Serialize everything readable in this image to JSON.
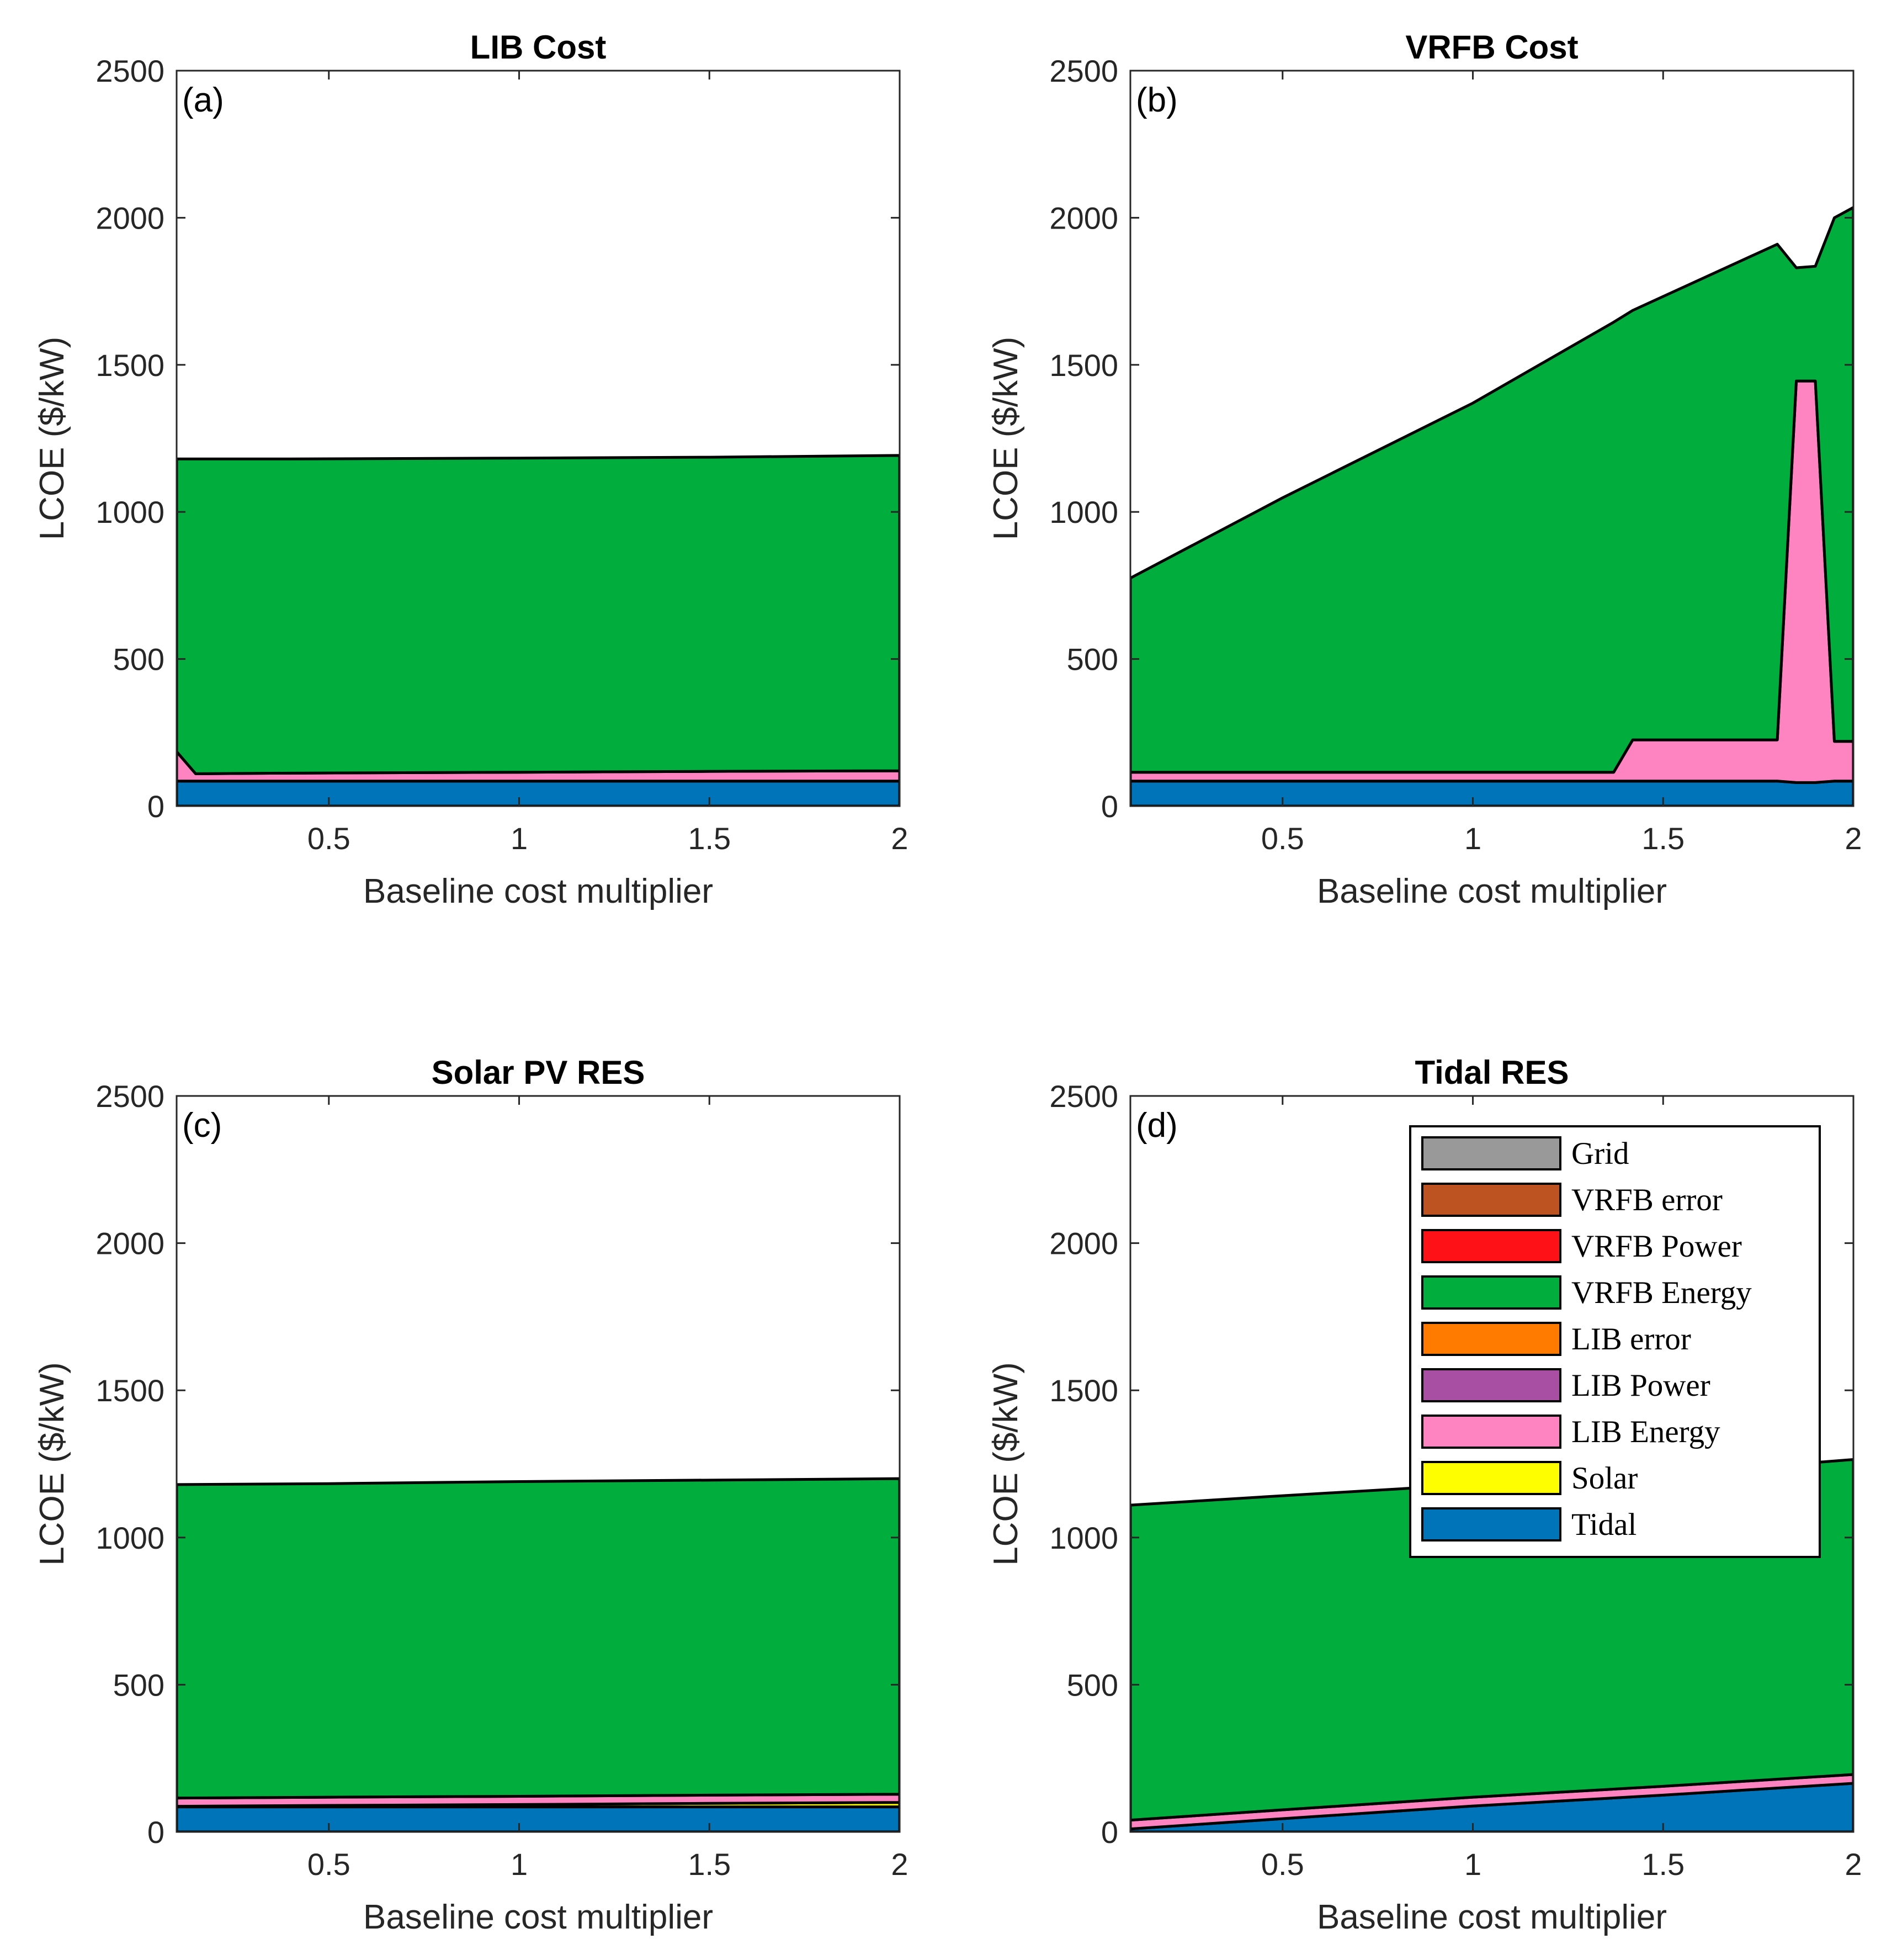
{
  "chart_data": [
    {
      "type": "area",
      "panel": "(a)",
      "title": "LIB Cost",
      "xlabel": "Baseline cost multiplier",
      "ylabel": "LCOE ($/kW)",
      "xlim": [
        0.1,
        2
      ],
      "ylim": [
        0,
        2500
      ],
      "xticks": [
        0.5,
        1,
        1.5,
        2
      ],
      "yticks": [
        0,
        500,
        1000,
        1500,
        2000,
        2500
      ],
      "x": [
        0.1,
        0.15,
        0.4,
        1.0,
        1.5,
        2.0
      ],
      "series": [
        {
          "name": "Tidal",
          "values": [
            85,
            85,
            85,
            85,
            85,
            85
          ]
        },
        {
          "name": "Solar",
          "values": [
            0,
            0,
            0,
            0,
            0,
            0
          ]
        },
        {
          "name": "LIB Energy",
          "values": [
            100,
            25,
            27,
            30,
            33,
            35
          ]
        },
        {
          "name": "LIB Power",
          "values": [
            0,
            0,
            0,
            0,
            0,
            0
          ]
        },
        {
          "name": "LIB error",
          "values": [
            0,
            0,
            0,
            0,
            0,
            0
          ]
        },
        {
          "name": "VRFB Energy",
          "values": [
            995,
            1070,
            1068,
            1068,
            1068,
            1072
          ]
        },
        {
          "name": "VRFB Power",
          "values": [
            0,
            0,
            0,
            0,
            0,
            0
          ]
        },
        {
          "name": "VRFB error",
          "values": [
            0,
            0,
            0,
            0,
            0,
            0
          ]
        },
        {
          "name": "Grid",
          "values": [
            0,
            0,
            0,
            0,
            0,
            0
          ]
        }
      ]
    },
    {
      "type": "area",
      "panel": "(b)",
      "title": "VRFB Cost",
      "xlabel": "Baseline cost multiplier",
      "ylabel": "LCOE ($/kW)",
      "xlim": [
        0.1,
        2
      ],
      "ylim": [
        0,
        2500
      ],
      "xticks": [
        0.5,
        1,
        1.5,
        2
      ],
      "yticks": [
        0,
        500,
        1000,
        1500,
        2000,
        2500
      ],
      "x": [
        0.1,
        0.5,
        1.0,
        1.37,
        1.42,
        1.8,
        1.85,
        1.9,
        1.95,
        2.0
      ],
      "series": [
        {
          "name": "Tidal",
          "values": [
            85,
            85,
            85,
            85,
            85,
            85,
            80,
            80,
            85,
            85
          ]
        },
        {
          "name": "Solar",
          "values": [
            0,
            0,
            0,
            0,
            0,
            0,
            0,
            0,
            0,
            0
          ]
        },
        {
          "name": "LIB Energy",
          "values": [
            30,
            30,
            30,
            30,
            140,
            140,
            1365,
            1365,
            135,
            135
          ]
        },
        {
          "name": "LIB Power",
          "values": [
            0,
            0,
            0,
            0,
            0,
            0,
            0,
            0,
            0,
            0
          ]
        },
        {
          "name": "LIB error",
          "values": [
            0,
            0,
            0,
            0,
            0,
            0,
            0,
            0,
            0,
            0
          ]
        },
        {
          "name": "VRFB Energy",
          "values": [
            660,
            933,
            1255,
            1530,
            1460,
            1685,
            385,
            390,
            1780,
            1815
          ]
        },
        {
          "name": "VRFB Power",
          "values": [
            0,
            0,
            0,
            0,
            0,
            0,
            0,
            0,
            0,
            0
          ]
        },
        {
          "name": "VRFB error",
          "values": [
            0,
            0,
            0,
            0,
            0,
            0,
            0,
            0,
            0,
            0
          ]
        },
        {
          "name": "Grid",
          "values": [
            0,
            0,
            0,
            0,
            0,
            0,
            0,
            0,
            0,
            0
          ]
        }
      ]
    },
    {
      "type": "area",
      "panel": "(c)",
      "title": "Solar PV RES",
      "xlabel": "Baseline cost multiplier",
      "ylabel": "LCOE ($/kW)",
      "xlim": [
        0.1,
        2
      ],
      "ylim": [
        0,
        2500
      ],
      "xticks": [
        0.5,
        1,
        1.5,
        2
      ],
      "yticks": [
        0,
        500,
        1000,
        1500,
        2000,
        2500
      ],
      "x": [
        0.1,
        0.5,
        1.0,
        1.5,
        2.0
      ],
      "series": [
        {
          "name": "Tidal",
          "values": [
            85,
            85,
            85,
            85,
            85
          ]
        },
        {
          "name": "Solar",
          "values": [
            2,
            5,
            8,
            12,
            15
          ]
        },
        {
          "name": "LIB Energy",
          "values": [
            28,
            28,
            28,
            28,
            28
          ]
        },
        {
          "name": "LIB Power",
          "values": [
            0,
            0,
            0,
            0,
            0
          ]
        },
        {
          "name": "LIB error",
          "values": [
            0,
            0,
            0,
            0,
            0
          ]
        },
        {
          "name": "VRFB Energy",
          "values": [
            1065,
            1065,
            1069,
            1070,
            1072
          ]
        },
        {
          "name": "VRFB Power",
          "values": [
            0,
            0,
            0,
            0,
            0
          ]
        },
        {
          "name": "VRFB error",
          "values": [
            0,
            0,
            0,
            0,
            0
          ]
        },
        {
          "name": "Grid",
          "values": [
            0,
            0,
            0,
            0,
            0
          ]
        }
      ]
    },
    {
      "type": "area",
      "panel": "(d)",
      "title": "Tidal RES",
      "xlabel": "Baseline cost multiplier",
      "ylabel": "LCOE ($/kW)",
      "xlim": [
        0.1,
        2
      ],
      "ylim": [
        0,
        2500
      ],
      "xticks": [
        0.5,
        1,
        1.5,
        2
      ],
      "yticks": [
        0,
        500,
        1000,
        1500,
        2000,
        2500
      ],
      "x": [
        0.1,
        0.5,
        1.0,
        1.5,
        2.0
      ],
      "series": [
        {
          "name": "Tidal",
          "values": [
            10,
            45,
            88,
            125,
            165
          ]
        },
        {
          "name": "Solar",
          "values": [
            0,
            0,
            0,
            0,
            0
          ]
        },
        {
          "name": "LIB Energy",
          "values": [
            30,
            30,
            30,
            30,
            30
          ]
        },
        {
          "name": "LIB Power",
          "values": [
            0,
            0,
            0,
            0,
            0
          ]
        },
        {
          "name": "LIB error",
          "values": [
            0,
            0,
            0,
            0,
            0
          ]
        },
        {
          "name": "VRFB Energy",
          "values": [
            1070,
            1067,
            1062,
            1060,
            1070
          ]
        },
        {
          "name": "VRFB Power",
          "values": [
            0,
            0,
            0,
            0,
            0
          ]
        },
        {
          "name": "VRFB error",
          "values": [
            0,
            0,
            0,
            0,
            0
          ]
        },
        {
          "name": "Grid",
          "values": [
            0,
            0,
            0,
            0,
            0
          ]
        }
      ]
    }
  ],
  "legend": {
    "placement": "upper-right of panel (d)",
    "entries": [
      {
        "name": "Grid",
        "color": "#999999"
      },
      {
        "name": "VRFB error",
        "color": "#bd5320"
      },
      {
        "name": "VRFB Power",
        "color": "#fe1218"
      },
      {
        "name": "VRFB Energy",
        "color": "#00ad3d"
      },
      {
        "name": "LIB error",
        "color": "#fe7b00"
      },
      {
        "name": "LIB Power",
        "color": "#a84ea3"
      },
      {
        "name": "LIB Energy",
        "color": "#fe84c1"
      },
      {
        "name": "Solar",
        "color": "#fefe00"
      },
      {
        "name": "Tidal",
        "color": "#0074b8"
      }
    ]
  }
}
